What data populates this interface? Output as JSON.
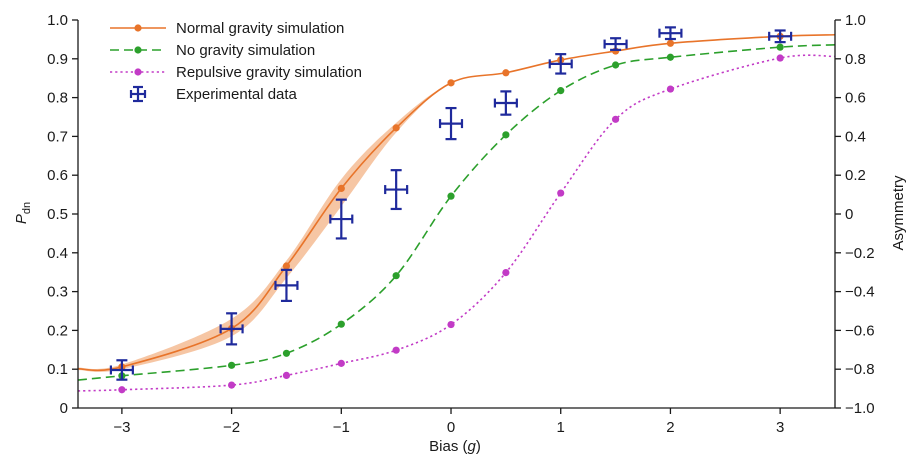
{
  "chart_data": {
    "type": "line",
    "xlabel": "Bias (g)",
    "ylabel": "P_dn",
    "y2label": "Asymmetry",
    "xlim": [
      -3.4,
      3.5
    ],
    "ylim": [
      0,
      1.0
    ],
    "y2lim": [
      -1.0,
      1.0
    ],
    "x_ticks": [
      -3,
      -2,
      -1,
      0,
      1,
      2,
      3
    ],
    "x_tick_labels": [
      "−3",
      "−2",
      "−1",
      "0",
      "1",
      "2",
      "3"
    ],
    "y_ticks": [
      0,
      0.1,
      0.2,
      0.3,
      0.4,
      0.5,
      0.6,
      0.7,
      0.8,
      0.9,
      1.0
    ],
    "y_tick_labels": [
      "0",
      "0.1",
      "0.2",
      "0.3",
      "0.4",
      "0.5",
      "0.6",
      "0.7",
      "0.8",
      "0.9",
      "1.0"
    ],
    "y2_ticks": [
      -1.0,
      -0.8,
      -0.6,
      -0.4,
      -0.2,
      0,
      0.2,
      0.4,
      0.6,
      0.8,
      1.0
    ],
    "y2_tick_labels": [
      "−1.0",
      "−0.8",
      "−0.6",
      "−0.4",
      "−0.2",
      "0",
      "0.2",
      "0.4",
      "0.6",
      "0.8",
      "1.0"
    ],
    "grid": false,
    "legend_position": "top-left",
    "series": [
      {
        "name": "Normal gravity simulation",
        "style": "solid-line-with-dots",
        "color": "#e8742a",
        "band_color": "#f6c6a4",
        "x": [
          -3,
          -2,
          -1.5,
          -1,
          -0.5,
          0,
          0.5,
          1,
          1.5,
          2,
          3
        ],
        "y": [
          0.106,
          0.205,
          0.366,
          0.566,
          0.722,
          0.838,
          0.864,
          0.897,
          0.92,
          0.94,
          0.958
        ],
        "band_low": [
          0.1,
          0.185,
          0.335,
          0.52,
          0.71,
          0.838,
          0.864,
          0.897,
          0.92,
          0.94,
          0.958
        ],
        "band_high": [
          0.112,
          0.23,
          0.38,
          0.59,
          0.735,
          0.838,
          0.864,
          0.897,
          0.92,
          0.94,
          0.958
        ],
        "curve_ends": [
          0.101,
          0.962
        ]
      },
      {
        "name": "No gravity simulation",
        "style": "dashed-line-with-dots",
        "color": "#2ca02c",
        "x": [
          -3,
          -2,
          -1.5,
          -1,
          -0.5,
          0,
          0.5,
          1,
          1.5,
          2,
          3
        ],
        "y": [
          0.083,
          0.11,
          0.141,
          0.216,
          0.341,
          0.546,
          0.704,
          0.818,
          0.884,
          0.904,
          0.93
        ],
        "curve_ends": [
          0.072,
          0.936
        ]
      },
      {
        "name": "Repulsive gravity simulation",
        "style": "dotted-line-with-dots",
        "color": "#c23bc6",
        "x": [
          -3,
          -2,
          -1.5,
          -1,
          -0.5,
          0,
          0.5,
          1,
          1.5,
          2,
          3
        ],
        "y": [
          0.047,
          0.059,
          0.084,
          0.115,
          0.149,
          0.215,
          0.349,
          0.554,
          0.744,
          0.822,
          0.902
        ],
        "curve_ends": [
          0.044,
          0.906
        ]
      },
      {
        "name": "Experimental data",
        "style": "points-with-error-bars",
        "color": "#1f2a9c",
        "x": [
          -3,
          -2,
          -1.5,
          -1,
          -0.5,
          0,
          0.5,
          1,
          1.5,
          2,
          3
        ],
        "y": [
          0.098,
          0.204,
          0.316,
          0.487,
          0.563,
          0.733,
          0.786,
          0.887,
          0.938,
          0.966,
          0.958
        ],
        "yerr": [
          0.025,
          0.04,
          0.04,
          0.05,
          0.05,
          0.04,
          0.03,
          0.025,
          0.015,
          0.015,
          0.015
        ],
        "xerr": [
          0.1,
          0.1,
          0.1,
          0.1,
          0.1,
          0.1,
          0.1,
          0.1,
          0.1,
          0.1,
          0.1
        ]
      }
    ]
  }
}
